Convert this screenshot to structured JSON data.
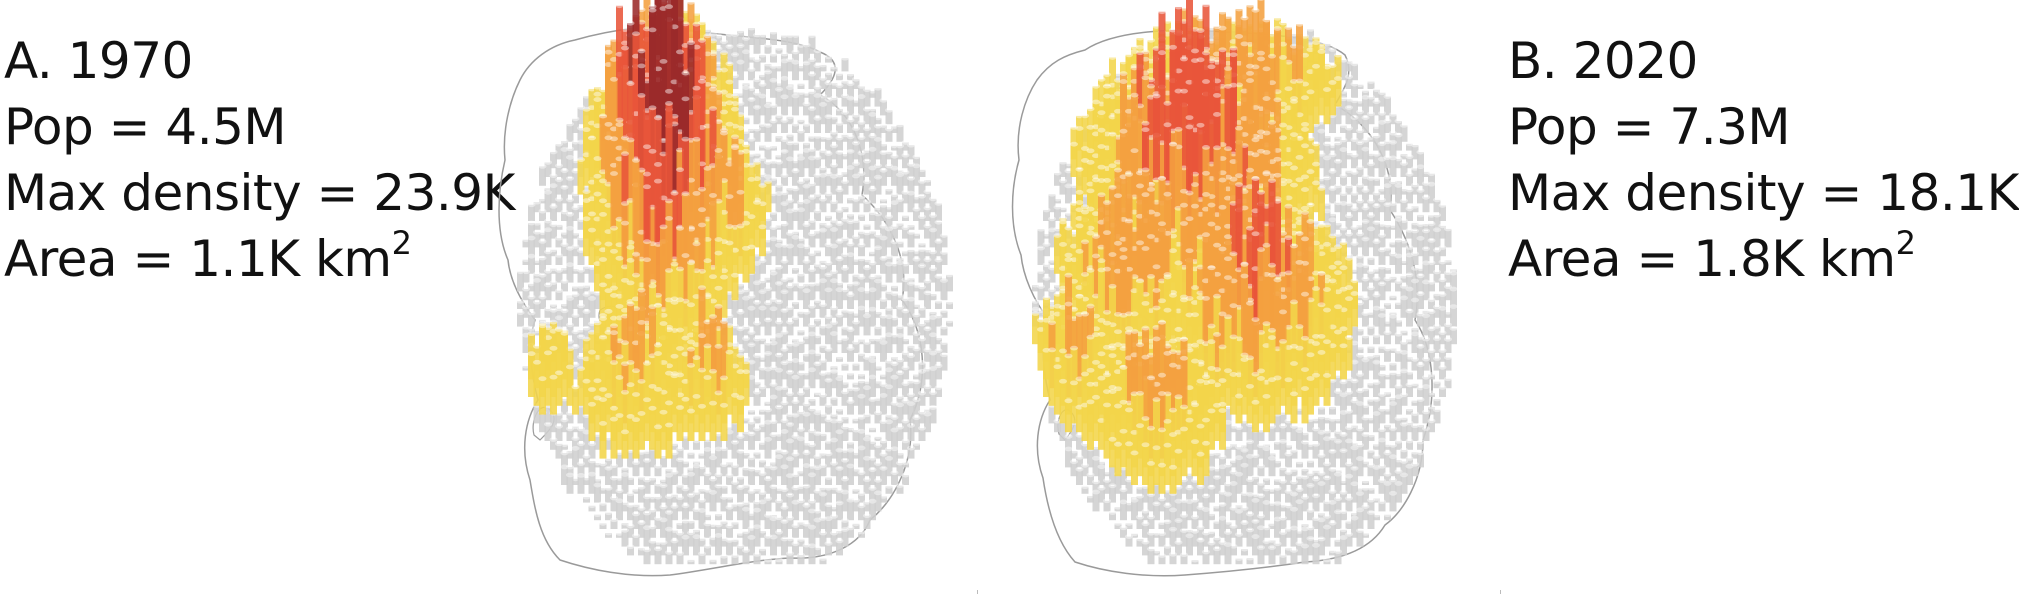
{
  "panels": [
    {
      "label": "A. 1970",
      "pop": "Pop = 4.5M",
      "max_density": "Max density = 23.9K",
      "area_prefix": "Area = 1.1K km",
      "area_sup": "2"
    },
    {
      "label": "B. 2020",
      "pop": "Pop = 7.3M",
      "max_density": "Max density = 18.1K",
      "area_prefix": "Area = 1.8K km",
      "area_sup": "2"
    }
  ],
  "colors": {
    "background_column": "#cfcfcf",
    "low_density": "#f2d54a",
    "mid_density": "#f4a040",
    "high_density": "#e8553a",
    "max_density": "#9b2a2a",
    "outline": "#9a9a9a"
  },
  "map_type": "3D population density column map"
}
